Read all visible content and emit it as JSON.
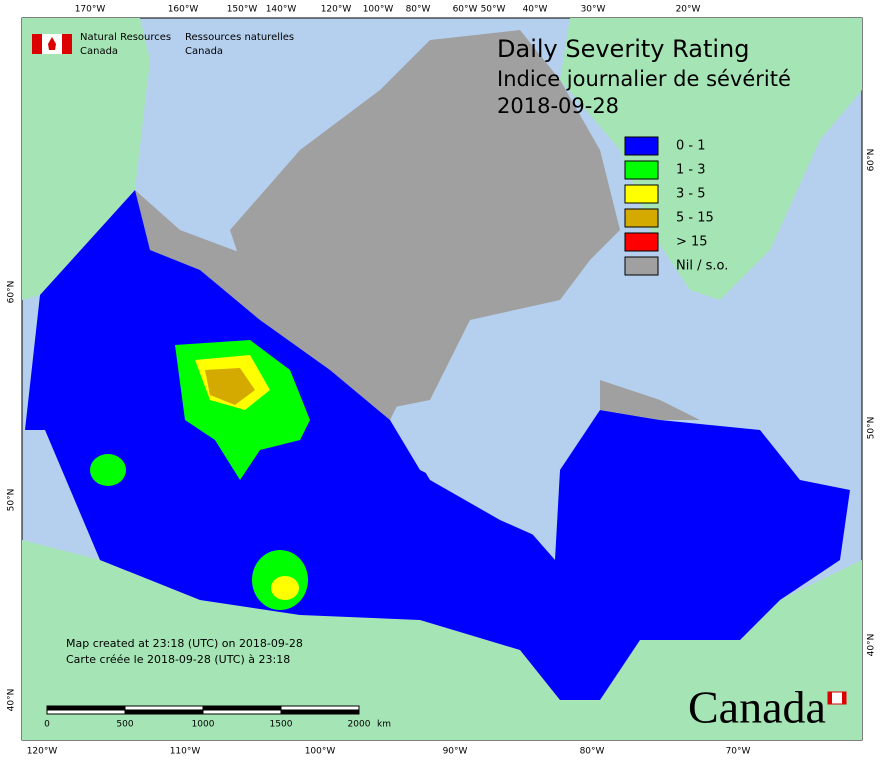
{
  "header": {
    "agency_en": [
      "Natural Resources",
      "Canada"
    ],
    "agency_fr": [
      "Ressources naturelles",
      "Canada"
    ]
  },
  "title": {
    "line1": "Daily Severity Rating",
    "line2": "Indice journalier de sévérité",
    "date": "2018-09-28"
  },
  "legend": [
    {
      "label": "0 - 1",
      "color": "#0000ff"
    },
    {
      "label": "1 - 3",
      "color": "#00ff00"
    },
    {
      "label": "3 - 5",
      "color": "#ffff00"
    },
    {
      "label": "5 - 15",
      "color": "#d4aa00"
    },
    {
      "label": "> 15",
      "color": "#ff0000"
    },
    {
      "label": "Nil / s.o.",
      "color": "#a0a0a0"
    }
  ],
  "top_longitudes": [
    "170°W",
    "160°W",
    "150°W",
    "140°W",
    "120°W",
    "100°W",
    "80°W",
    "60°W",
    "50°W",
    "40°W",
    "30°W",
    "20°W"
  ],
  "bottom_longitudes": [
    "120°W",
    "110°W",
    "100°W",
    "90°W",
    "80°W",
    "70°W"
  ],
  "left_latitudes": [
    "60°N",
    "50°N",
    "40°N"
  ],
  "right_latitudes": [
    "60°N",
    "50°N",
    "40°N"
  ],
  "scale_bar": {
    "labels": [
      "0",
      "500",
      "1000",
      "1500",
      "2000"
    ],
    "unit": "km"
  },
  "footer": [
    "Map created at 23:18 (UTC) on 2018-09-28",
    "Carte créée le 2018-09-28 (UTC) à 23:18"
  ],
  "wordmark": "Canada"
}
